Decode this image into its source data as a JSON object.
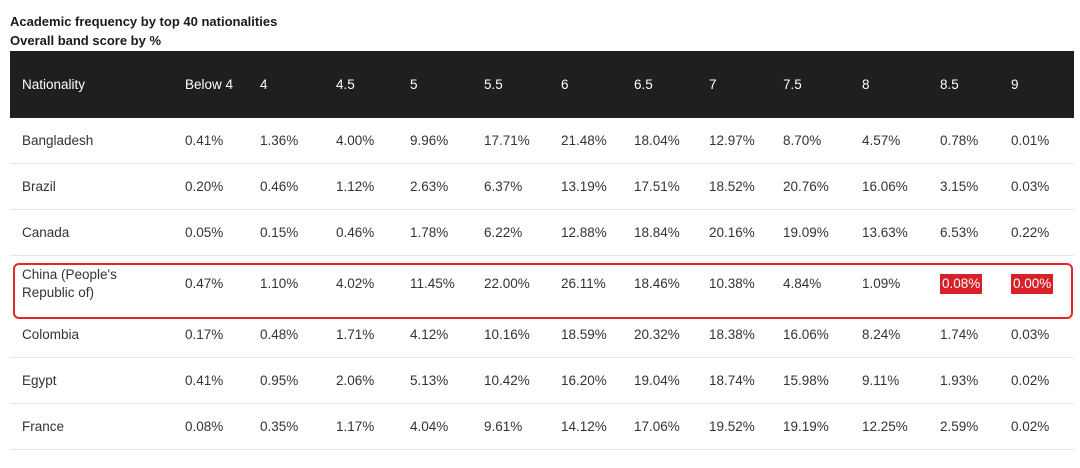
{
  "title": "Academic frequency by top 40 nationalities",
  "subtitle": "Overall band score by %",
  "columns": [
    "Nationality",
    "Below 4",
    "4",
    "4.5",
    "5",
    "5.5",
    "6",
    "6.5",
    "7",
    "7.5",
    "8",
    "8.5",
    "9"
  ],
  "rows": [
    {
      "nationality": "Bangladesh",
      "values": [
        "0.41%",
        "1.36%",
        "4.00%",
        "9.96%",
        "17.71%",
        "21.48%",
        "18.04%",
        "12.97%",
        "8.70%",
        "4.57%",
        "0.78%",
        "0.01%"
      ]
    },
    {
      "nationality": "Brazil",
      "values": [
        "0.20%",
        "0.46%",
        "1.12%",
        "2.63%",
        "6.37%",
        "13.19%",
        "17.51%",
        "18.52%",
        "20.76%",
        "16.06%",
        "3.15%",
        "0.03%"
      ]
    },
    {
      "nationality": "Canada",
      "values": [
        "0.05%",
        "0.15%",
        "0.46%",
        "1.78%",
        "6.22%",
        "12.88%",
        "18.84%",
        "20.16%",
        "19.09%",
        "13.63%",
        "6.53%",
        "0.22%"
      ]
    },
    {
      "nationality": "China (People's Republic of)",
      "values": [
        "0.47%",
        "1.10%",
        "4.02%",
        "11.45%",
        "22.00%",
        "26.11%",
        "18.46%",
        "10.38%",
        "4.84%",
        "1.09%",
        "0.08%",
        "0.00%"
      ],
      "highlighted": true
    },
    {
      "nationality": "Colombia",
      "values": [
        "0.17%",
        "0.48%",
        "1.71%",
        "4.12%",
        "10.16%",
        "18.59%",
        "20.32%",
        "18.38%",
        "16.06%",
        "8.24%",
        "1.74%",
        "0.03%"
      ]
    },
    {
      "nationality": "Egypt",
      "values": [
        "0.41%",
        "0.95%",
        "2.06%",
        "5.13%",
        "10.42%",
        "16.20%",
        "19.04%",
        "18.74%",
        "15.98%",
        "9.11%",
        "1.93%",
        "0.02%"
      ]
    },
    {
      "nationality": "France",
      "values": [
        "0.08%",
        "0.35%",
        "1.17%",
        "4.04%",
        "9.61%",
        "14.12%",
        "17.06%",
        "19.52%",
        "19.19%",
        "12.25%",
        "2.59%",
        "0.02%"
      ]
    }
  ],
  "colors": {
    "header_bg": "#1f1f1f",
    "highlight_border": "#e8242b",
    "badge_bg": "#d7202a"
  }
}
